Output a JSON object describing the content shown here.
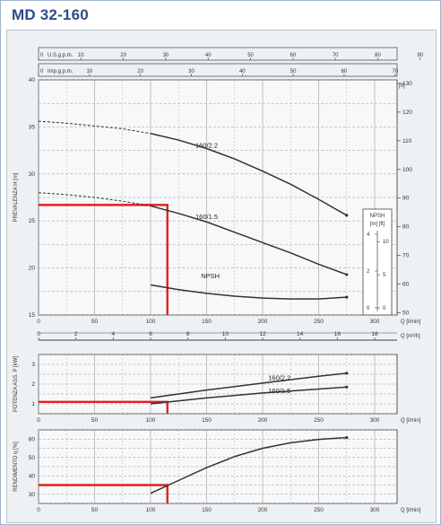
{
  "title": "MD 32-160",
  "colors": {
    "title": "#2f4a8a",
    "curve": "#333333",
    "grid": "#9a9a9a",
    "operating_point": "#e02020",
    "panel": "#eef1f4"
  },
  "top_scales": {
    "usgpm": {
      "label": "U.S.g.p.m.",
      "ticks": [
        "0",
        "10",
        "20",
        "30",
        "40",
        "50",
        "60",
        "70",
        "80",
        "90"
      ]
    },
    "impgpm": {
      "label": "Imp.g.p.m.",
      "ticks": [
        "0",
        "10",
        "20",
        "30",
        "40",
        "50",
        "60",
        "70"
      ]
    }
  },
  "chart_data": [
    {
      "type": "line",
      "id": "head",
      "ylabel": "PREVALENZA H [m]",
      "ylabel_right": "[ft]",
      "xlabel": "Q [l/min]",
      "xlim": [
        0,
        320
      ],
      "ylim": [
        15,
        40
      ],
      "x_ticks": [
        "0",
        "50",
        "100",
        "150",
        "200",
        "250",
        "300"
      ],
      "y_ticks": [
        "15",
        "20",
        "25",
        "30",
        "35",
        "40"
      ],
      "y_ticks_right": [
        "50",
        "60",
        "70",
        "80",
        "90",
        "100",
        "110",
        "120",
        "130"
      ],
      "series": [
        {
          "name": "160/2.2",
          "x": [
            0,
            25,
            50,
            75,
            100,
            125,
            150,
            175,
            200,
            225,
            250,
            275
          ],
          "y": [
            35.6,
            35.4,
            35.1,
            34.8,
            34.3,
            33.6,
            32.7,
            31.6,
            30.3,
            28.9,
            27.3,
            25.6
          ],
          "dashed_until": 100
        },
        {
          "name": "160/1.5",
          "x": [
            0,
            25,
            50,
            75,
            100,
            125,
            150,
            175,
            200,
            225,
            250,
            275
          ],
          "y": [
            28.0,
            27.8,
            27.5,
            27.1,
            26.6,
            25.8,
            24.9,
            23.8,
            22.7,
            21.6,
            20.4,
            19.3
          ],
          "dashed_until": 100
        },
        {
          "name": "NPSH",
          "x": [
            100,
            125,
            150,
            175,
            200,
            225,
            250,
            275
          ],
          "y": [
            18.2,
            17.7,
            17.3,
            17.0,
            16.8,
            16.7,
            16.7,
            16.9
          ]
        }
      ],
      "npsh_inset": {
        "title": "NPSH",
        "units": "[m]   [ft]",
        "m_ticks": [
          "0",
          "2",
          "4"
        ],
        "ft_ticks": [
          "0",
          "5",
          "10"
        ]
      },
      "operating_point": {
        "q": 115,
        "h": 26.7
      }
    },
    {
      "type": "axis",
      "id": "flow_m3h",
      "xlabel": "Q [m³/h]",
      "xlim": [
        0,
        19.2
      ],
      "x_ticks": [
        "0",
        "2",
        "4",
        "6",
        "8",
        "10",
        "12",
        "14",
        "16",
        "18"
      ]
    },
    {
      "type": "line",
      "id": "power",
      "ylabel": "POTENZA ASS. P [kW]",
      "xlabel": "Q [l/min]",
      "xlim": [
        0,
        320
      ],
      "ylim": [
        0.5,
        3.5
      ],
      "x_ticks": [
        "0",
        "50",
        "100",
        "150",
        "200",
        "250",
        "300"
      ],
      "y_ticks": [
        "1",
        "2",
        "3"
      ],
      "series": [
        {
          "name": "160/2.2",
          "x": [
            100,
            150,
            200,
            250,
            275
          ],
          "y": [
            1.3,
            1.7,
            2.05,
            2.4,
            2.55
          ]
        },
        {
          "name": "160/1.5",
          "x": [
            100,
            150,
            200,
            250,
            275
          ],
          "y": [
            1.0,
            1.3,
            1.55,
            1.75,
            1.85
          ]
        }
      ],
      "operating_point": {
        "q": 115,
        "p": 1.1
      }
    },
    {
      "type": "line",
      "id": "efficiency",
      "ylabel": "RENDIMENTO η [%]",
      "xlabel": "Q [l/min]",
      "xlim": [
        0,
        320
      ],
      "ylim": [
        25,
        65
      ],
      "x_ticks": [
        "0",
        "50",
        "100",
        "150",
        "200",
        "250",
        "300"
      ],
      "y_ticks": [
        "30",
        "40",
        "50",
        "60"
      ],
      "series": [
        {
          "name": "",
          "x": [
            100,
            125,
            150,
            175,
            200,
            225,
            250,
            275
          ],
          "y": [
            30.5,
            37.5,
            44.5,
            50.5,
            55.0,
            58.0,
            59.8,
            60.8
          ]
        }
      ],
      "operating_point": {
        "q": 115,
        "eta": 35
      }
    }
  ]
}
